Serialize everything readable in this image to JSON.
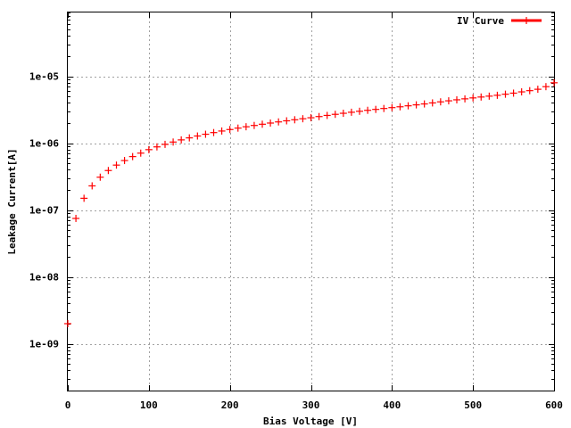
{
  "chart_data": {
    "type": "scatter",
    "title": "",
    "xlabel": "Bias Voltage [V]",
    "ylabel": "Leakage Current[A]",
    "xlim": [
      0,
      600
    ],
    "ylim": [
      2e-10,
      9e-05
    ],
    "y_scale": "log",
    "grid": true,
    "legend_position": "top-right",
    "x_ticks": [
      0,
      100,
      200,
      300,
      400,
      500,
      600
    ],
    "x_tick_labels": [
      "0",
      "100",
      "200",
      "300",
      "400",
      "500",
      "600"
    ],
    "y_ticks": [
      1e-09,
      1e-08,
      1e-07,
      1e-06,
      1e-05
    ],
    "y_tick_labels": [
      "1e-09",
      "1e-08",
      "1e-07",
      "1e-06",
      "1e-05"
    ],
    "series": [
      {
        "name": "IV Curve",
        "color": "#ff0000",
        "marker": "plus",
        "x": [
          0,
          10,
          20,
          30,
          40,
          50,
          60,
          70,
          80,
          90,
          100,
          110,
          120,
          130,
          140,
          150,
          160,
          170,
          180,
          190,
          200,
          210,
          220,
          230,
          240,
          250,
          260,
          270,
          280,
          290,
          300,
          310,
          320,
          330,
          340,
          350,
          360,
          370,
          380,
          390,
          400,
          410,
          420,
          430,
          440,
          450,
          460,
          470,
          480,
          490,
          500,
          510,
          520,
          530,
          540,
          550,
          560,
          570,
          580,
          590,
          600
        ],
        "y": [
          2e-09,
          7.5e-08,
          1.5e-07,
          2.3e-07,
          3.1e-07,
          3.9e-07,
          4.7e-07,
          5.5e-07,
          6.3e-07,
          7.1e-07,
          8e-07,
          8.8e-07,
          9.6e-07,
          1.04e-06,
          1.12e-06,
          1.2e-06,
          1.28e-06,
          1.36e-06,
          1.44e-06,
          1.52e-06,
          1.6e-06,
          1.68e-06,
          1.76e-06,
          1.84e-06,
          1.92e-06,
          2e-06,
          2.08e-06,
          2.16e-06,
          2.24e-06,
          2.32e-06,
          2.4e-06,
          2.5e-06,
          2.6e-06,
          2.7e-06,
          2.8e-06,
          2.9e-06,
          3e-06,
          3.1e-06,
          3.2e-06,
          3.3e-06,
          3.4e-06,
          3.5e-06,
          3.62e-06,
          3.74e-06,
          3.86e-06,
          4e-06,
          4.15e-06,
          4.3e-06,
          4.45e-06,
          4.6e-06,
          4.75e-06,
          4.9e-06,
          5.05e-06,
          5.2e-06,
          5.4e-06,
          5.6e-06,
          5.85e-06,
          6.1e-06,
          6.4e-06,
          7e-06,
          8e-06
        ]
      }
    ]
  }
}
